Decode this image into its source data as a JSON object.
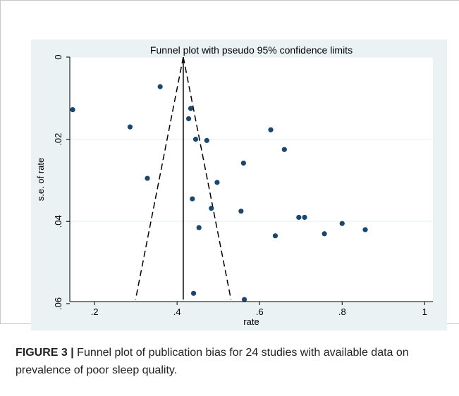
{
  "chart_data": {
    "type": "scatter",
    "title": "Funnel plot with pseudo 95% confidence limits",
    "xlabel": "rate",
    "ylabel": "s.e. of rate",
    "xlim": [
      0.14,
      1.02
    ],
    "ylim": [
      0,
      0.0595
    ],
    "y_inverted": true,
    "grid": true,
    "legend": "none",
    "x_ticks": [
      0.2,
      0.4,
      0.6,
      0.8,
      1
    ],
    "x_tick_labels": [
      ".2",
      ".4",
      ".6",
      ".8",
      "1"
    ],
    "y_ticks": [
      0,
      0.02,
      0.04,
      0.06
    ],
    "y_tick_labels": [
      "0",
      ".02",
      ".04",
      ".06"
    ],
    "pooled_estimate": 0.415,
    "funnel_se_max": 0.059,
    "points": [
      {
        "x": 0.147,
        "y": 0.0128
      },
      {
        "x": 0.286,
        "y": 0.017
      },
      {
        "x": 0.328,
        "y": 0.0295
      },
      {
        "x": 0.359,
        "y": 0.0072
      },
      {
        "x": 0.428,
        "y": 0.015
      },
      {
        "x": 0.433,
        "y": 0.0125
      },
      {
        "x": 0.437,
        "y": 0.0345
      },
      {
        "x": 0.44,
        "y": 0.0575
      },
      {
        "x": 0.445,
        "y": 0.02
      },
      {
        "x": 0.453,
        "y": 0.0415
      },
      {
        "x": 0.472,
        "y": 0.0203
      },
      {
        "x": 0.483,
        "y": 0.0368
      },
      {
        "x": 0.497,
        "y": 0.0305
      },
      {
        "x": 0.555,
        "y": 0.0375
      },
      {
        "x": 0.561,
        "y": 0.0258
      },
      {
        "x": 0.563,
        "y": 0.059
      },
      {
        "x": 0.627,
        "y": 0.0177
      },
      {
        "x": 0.638,
        "y": 0.0435
      },
      {
        "x": 0.66,
        "y": 0.0225
      },
      {
        "x": 0.695,
        "y": 0.039
      },
      {
        "x": 0.709,
        "y": 0.039
      },
      {
        "x": 0.757,
        "y": 0.043
      },
      {
        "x": 0.8,
        "y": 0.0405
      },
      {
        "x": 0.856,
        "y": 0.042
      }
    ],
    "colors": {
      "background": "#eaf2f3",
      "grid": "#ffffff",
      "points": "#1a476f",
      "lines": "#000000"
    }
  },
  "caption": {
    "label": "FIGURE 3 |",
    "text": " Funnel plot of publication bias for 24 studies with available data on prevalence of poor sleep quality."
  }
}
